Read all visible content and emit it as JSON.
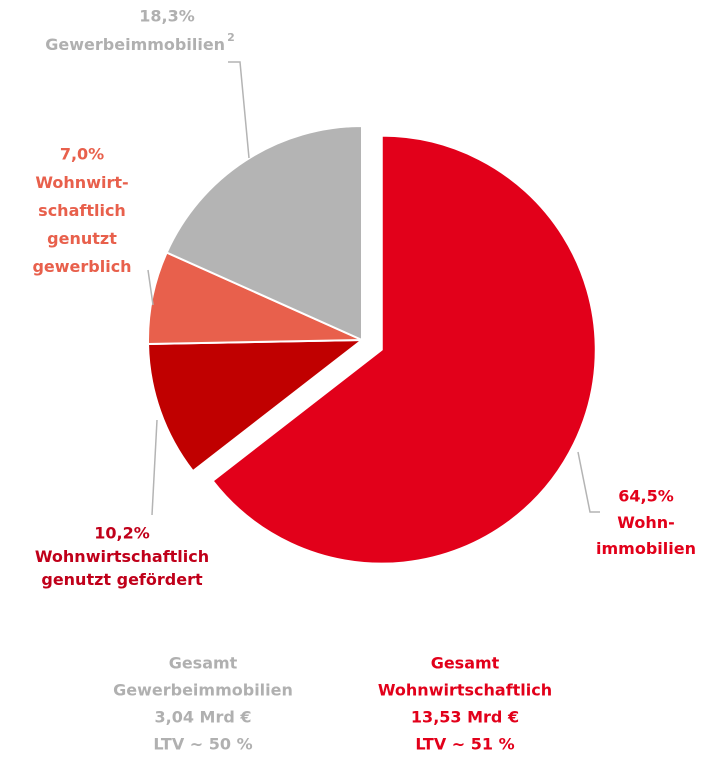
{
  "chart_data": {
    "type": "pie",
    "values": [
      64.5,
      10.2,
      7.0,
      18.3
    ],
    "value_labels": [
      "64,5%",
      "10,2%",
      "7,0%",
      "18,3%"
    ],
    "labels": [
      [
        "Wohn-",
        "immobilien"
      ],
      [
        "Wohnwirtschaftlich",
        "genutzt gefördert"
      ],
      [
        "Wohnwirt-",
        "schaftlich",
        "genutzt",
        "gewerblich"
      ],
      [
        "Gewerbeimmobilien"
      ]
    ],
    "label_notes": [
      null,
      null,
      null,
      "2"
    ],
    "colors": [
      "#e2001a",
      "#c00000",
      "#e8604c",
      "#b4b4b4"
    ],
    "label_colors": [
      "#e2001a",
      "#c0001a",
      "#e8604c",
      "#b0b0b0"
    ],
    "explode": [
      true,
      false,
      false,
      false
    ],
    "summaries": [
      {
        "color": "#b0b0b0",
        "lines": [
          "Gesamt",
          "Gewerbeimmobilien",
          "3,04 Mrd €",
          "LTV ~ 50 %"
        ]
      },
      {
        "color": "#e2001a",
        "lines": [
          "Gesamt",
          "Wohnwirtschaftlich",
          "13,53 Mrd €",
          "LTV ~ 51 %"
        ]
      }
    ]
  }
}
